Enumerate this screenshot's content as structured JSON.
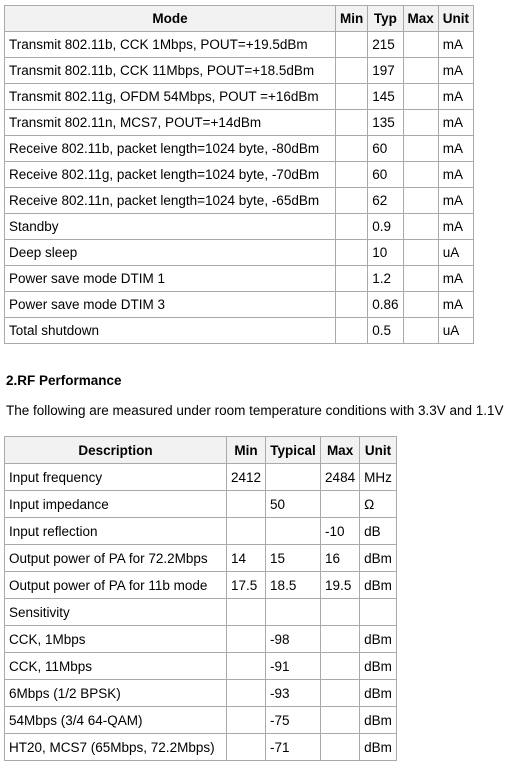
{
  "power_table": {
    "headers": [
      "Mode",
      "Min",
      "Typ",
      "Max",
      "Unit"
    ],
    "rows": [
      [
        "Transmit 802.11b, CCK 1Mbps, POUT=+19.5dBm",
        "",
        "215",
        "",
        "mA"
      ],
      [
        "Transmit 802.11b, CCK 11Mbps, POUT=+18.5dBm",
        "",
        "197",
        "",
        "mA"
      ],
      [
        "Transmit 802.11g, OFDM 54Mbps, POUT =+16dBm",
        "",
        "145",
        "",
        "mA"
      ],
      [
        "Transmit 802.11n, MCS7, POUT=+14dBm",
        "",
        "135",
        "",
        "mA"
      ],
      [
        "Receive 802.11b, packet length=1024 byte, -80dBm",
        "",
        "60",
        "",
        "mA"
      ],
      [
        "Receive 802.11g, packet length=1024 byte, -70dBm",
        "",
        "60",
        "",
        "mA"
      ],
      [
        "Receive 802.11n, packet length=1024 byte, -65dBm",
        "",
        "62",
        "",
        "mA"
      ],
      [
        "Standby",
        "",
        "0.9",
        "",
        "mA"
      ],
      [
        "Deep sleep",
        "",
        "10",
        "",
        "uA"
      ],
      [
        "Power save mode DTIM 1",
        "",
        "1.2",
        "",
        "mA"
      ],
      [
        "Power save mode DTIM 3",
        "",
        "0.86",
        "",
        "mA"
      ],
      [
        "Total shutdown",
        "",
        "0.5",
        "",
        "uA"
      ]
    ]
  },
  "rf_section": {
    "heading": "2.RF Performance",
    "intro": "The following are measured under room temperature conditions with 3.3V and 1.1V"
  },
  "rf_table": {
    "headers": [
      "Description",
      "Min",
      "Typical",
      "Max",
      "Unit"
    ],
    "rows": [
      [
        "Input frequency",
        "2412",
        "",
        "2484",
        "MHz"
      ],
      [
        "Input impedance",
        "",
        "50",
        "",
        "Ω"
      ],
      [
        "Input reflection",
        "",
        "",
        "-10",
        "dB"
      ],
      [
        "Output power of PA for 72.2Mbps",
        "14",
        "15",
        "16",
        "dBm"
      ],
      [
        "Output power of PA for 11b mode",
        "17.5",
        "18.5",
        "19.5",
        "dBm"
      ],
      [
        "Sensitivity",
        "",
        "",
        "",
        ""
      ],
      [
        "CCK, 1Mbps",
        "",
        "-98",
        "",
        "dBm"
      ],
      [
        "CCK, 11Mbps",
        "",
        "-91",
        "",
        "dBm"
      ],
      [
        "6Mbps (1/2 BPSK)",
        "",
        "-93",
        "",
        "dBm"
      ],
      [
        "54Mbps (3/4 64-QAM)",
        "",
        "-75",
        "",
        "dBm"
      ],
      [
        "HT20, MCS7 (65Mbps, 72.2Mbps)",
        "",
        "-71",
        "",
        "dBm"
      ]
    ]
  }
}
